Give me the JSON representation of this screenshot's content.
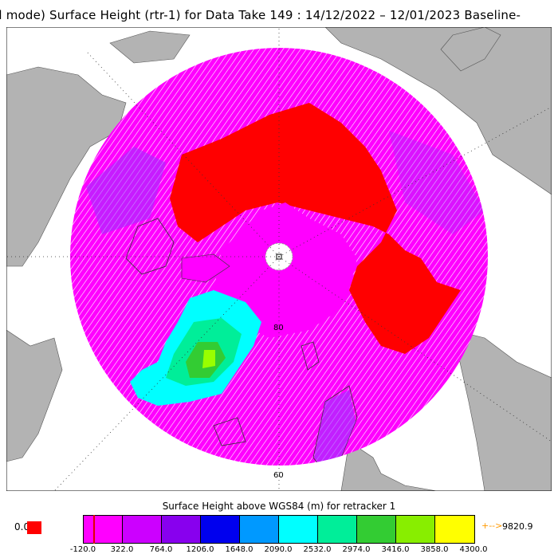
{
  "title": "ll mode) Surface Height (rtr-1) for Data Take 149 : 14/12/2022 – 12/01/2023 Baseline-",
  "map": {
    "latitude_labels": [
      "80",
      "60"
    ],
    "land_color": "#b3b3b3",
    "ocean_color": "#ffffff",
    "ice_color": "#ff00ff",
    "sea_ice_color": "#ff0000",
    "greenland_colors": [
      "#00ffff",
      "#00ff99",
      "#33ff33",
      "#99ff00"
    ]
  },
  "legend": {
    "title": "Surface Height above WGS84 (m) for retracker 1",
    "colors": [
      "#ff00ff",
      "#cc00ff",
      "#8800ee",
      "#0000ee",
      "#0099ff",
      "#00ffff",
      "#00ee99",
      "#33cc33",
      "#88ee00",
      "#ffff00",
      "#ffaa00",
      "#ff8800"
    ],
    "ticks": [
      "-120.0",
      "322.0",
      "764.0",
      "1206.0",
      "1648.0",
      "2090.0",
      "2532.0",
      "2974.0",
      "3416.0",
      "3858.0",
      "4300.0"
    ],
    "zero_label": "0.0",
    "zero_color": "#ff0000",
    "max_arrow": "+-->",
    "max_value": "9820.9",
    "max_color": "#ff9900"
  }
}
